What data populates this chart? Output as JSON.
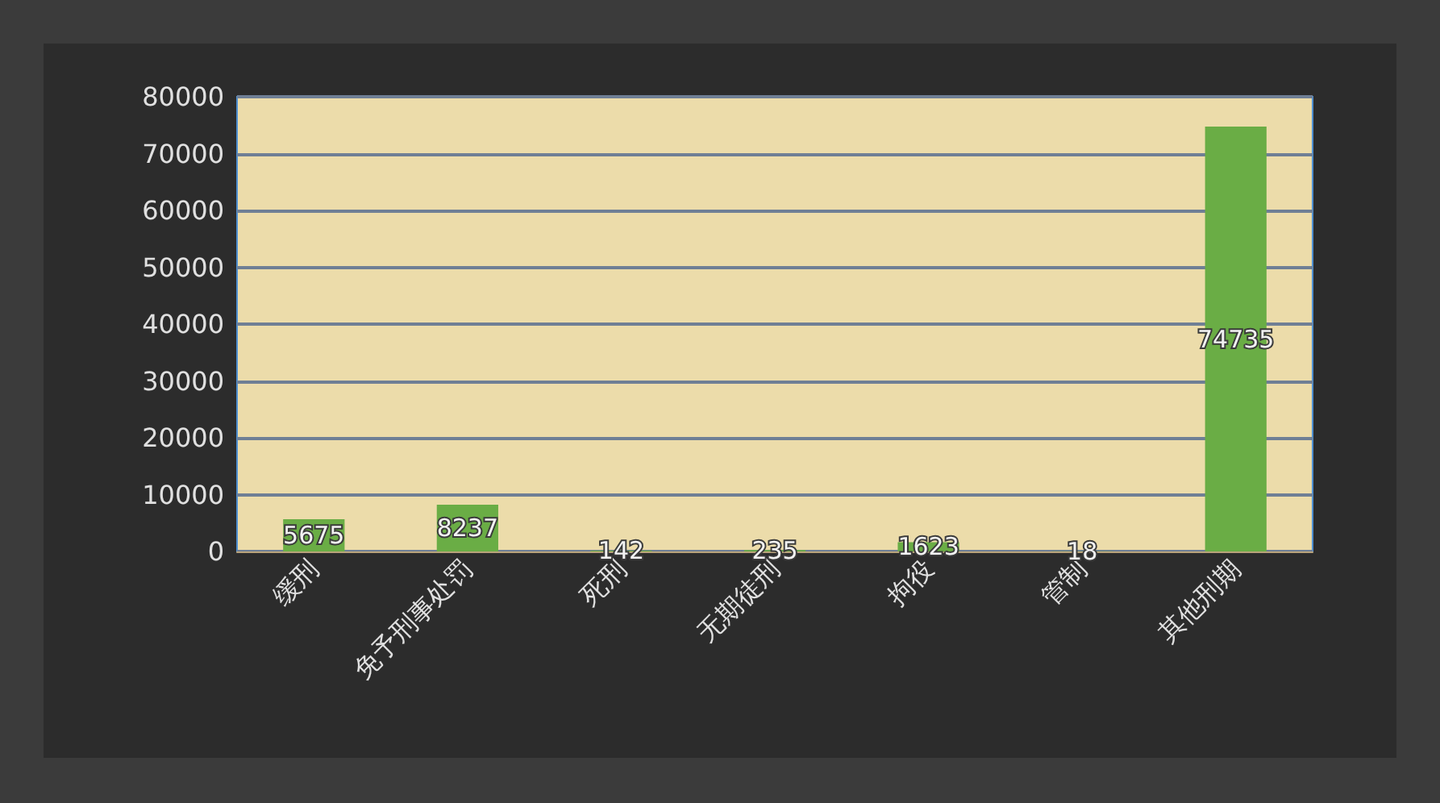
{
  "chart_data": {
    "type": "bar",
    "categories": [
      "缓刑",
      "免予刑事处罚",
      "死刑",
      "无期徒刑",
      "拘役",
      "管制",
      "其他刑期"
    ],
    "values": [
      5675,
      8237,
      142,
      235,
      1623,
      18,
      74735
    ],
    "color": "#6aad45",
    "ylim": [
      0,
      80000
    ],
    "yticks": [
      0,
      10000,
      20000,
      30000,
      40000,
      50000,
      60000,
      70000,
      80000
    ],
    "grid": "y",
    "data_labels": true
  }
}
